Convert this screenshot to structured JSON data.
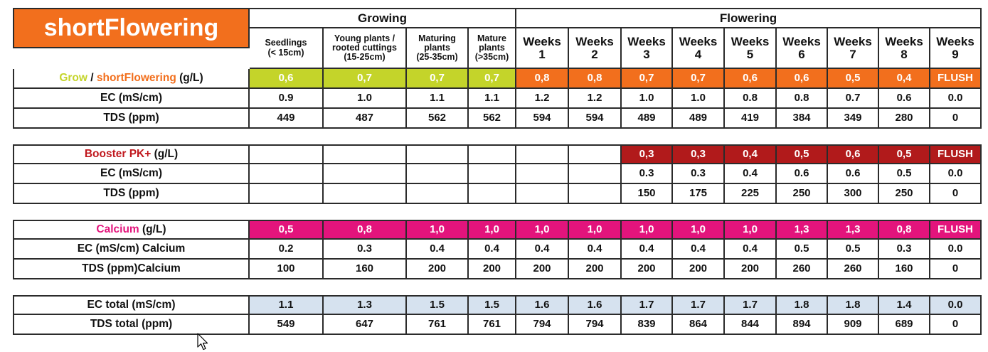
{
  "title": "shortFlowering",
  "groups": {
    "growing": "Growing",
    "flowering": "Flowering"
  },
  "stages": [
    "Seedlings\n(< 15cm)",
    "Young plants /\nrooted cuttings\n(15-25cm)",
    "Maturing\nplants\n(25-35cm)",
    "Mature\nplants\n(>35cm)"
  ],
  "weeks": [
    "Weeks\n1",
    "Weeks\n2",
    "Weeks\n3",
    "Weeks\n4",
    "Weeks\n5",
    "Weeks\n6",
    "Weeks\n7",
    "Weeks\n8",
    "Weeks\n9"
  ],
  "sections": {
    "grow": {
      "label_grow": "Grow",
      "label_sep": " / ",
      "label_short": "shortFlowering",
      "label_unit": " (g/L)",
      "doses": [
        "0,6",
        "0,7",
        "0,7",
        "0,7",
        "0,8",
        "0,8",
        "0,7",
        "0,7",
        "0,6",
        "0,6",
        "0,5",
        "0,4",
        "FLUSH"
      ],
      "ec_label": "EC (mS/cm)",
      "ec": [
        "0.9",
        "1.0",
        "1.1",
        "1.1",
        "1.2",
        "1.2",
        "1.0",
        "1.0",
        "0.8",
        "0.8",
        "0.7",
        "0.6",
        "0.0"
      ],
      "tds_label": "TDS (ppm)",
      "tds": [
        "449",
        "487",
        "562",
        "562",
        "594",
        "594",
        "489",
        "489",
        "419",
        "384",
        "349",
        "280",
        "0"
      ]
    },
    "booster": {
      "label_name": "Booster PK+",
      "label_unit": " (g/L)",
      "doses": [
        "",
        "",
        "",
        "",
        "",
        "",
        "0,3",
        "0,3",
        "0,4",
        "0,5",
        "0,6",
        "0,5",
        "FLUSH"
      ],
      "ec_label": "EC (mS/cm)",
      "ec": [
        "",
        "",
        "",
        "",
        "",
        "",
        "0.3",
        "0.3",
        "0.4",
        "0.6",
        "0.6",
        "0.5",
        "0.0"
      ],
      "tds_label": "TDS (ppm)",
      "tds": [
        "",
        "",
        "",
        "",
        "",
        "",
        "150",
        "175",
        "225",
        "250",
        "300",
        "250",
        "0"
      ]
    },
    "calcium": {
      "label_name": "Calcium",
      "label_unit": " (g/L)",
      "doses": [
        "0,5",
        "0,8",
        "1,0",
        "1,0",
        "1,0",
        "1,0",
        "1,0",
        "1,0",
        "1,0",
        "1,3",
        "1,3",
        "0,8",
        "FLUSH"
      ],
      "ec_label": "EC (mS/cm) Calcium",
      "ec": [
        "0.2",
        "0.3",
        "0.4",
        "0.4",
        "0.4",
        "0.4",
        "0.4",
        "0.4",
        "0.4",
        "0.5",
        "0.5",
        "0.3",
        "0.0"
      ],
      "tds_label": "TDS (ppm)Calcium",
      "tds": [
        "100",
        "160",
        "200",
        "200",
        "200",
        "200",
        "200",
        "200",
        "200",
        "260",
        "260",
        "160",
        "0"
      ]
    },
    "totals": {
      "ec_label": "EC total (mS/cm)",
      "ec": [
        "1.1",
        "1.3",
        "1.5",
        "1.5",
        "1.6",
        "1.6",
        "1.7",
        "1.7",
        "1.7",
        "1.8",
        "1.8",
        "1.4",
        "0.0"
      ],
      "tds_label": "TDS total (ppm)",
      "tds": [
        "549",
        "647",
        "761",
        "761",
        "794",
        "794",
        "839",
        "864",
        "844",
        "894",
        "909",
        "689",
        "0"
      ]
    }
  },
  "colors": {
    "orange": "#f26f1d",
    "lime": "#c4d42a",
    "red": "#b11a1b",
    "pink": "#e3147c",
    "blue": "#d6e2ef"
  }
}
